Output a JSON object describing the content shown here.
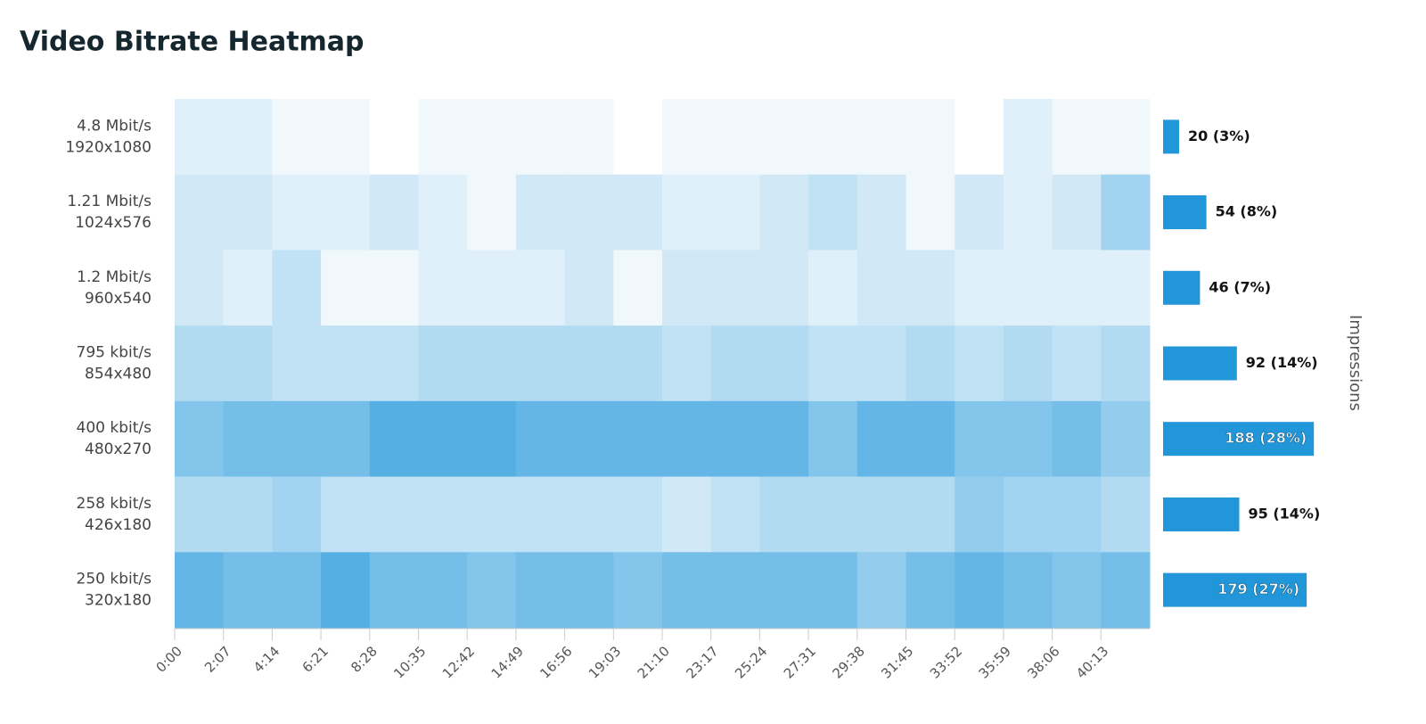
{
  "chart_data": {
    "type": "heatmap",
    "title": "Video Bitrate Heatmap",
    "x": [
      "0:00",
      "2:07",
      "4:14",
      "6:21",
      "8:28",
      "10:35",
      "12:42",
      "14:49",
      "16:56",
      "19:03",
      "21:10",
      "23:17",
      "25:24",
      "27:31",
      "29:38",
      "31:45",
      "33:52",
      "35:59",
      "38:06",
      "40:13"
    ],
    "y": [
      {
        "bitrate": "4.8 Mbit/s",
        "resolution": "1920x1080"
      },
      {
        "bitrate": "1.21 Mbit/s",
        "resolution": "1024x576"
      },
      {
        "bitrate": "1.2 Mbit/s",
        "resolution": "960x540"
      },
      {
        "bitrate": "795 kbit/s",
        "resolution": "854x480"
      },
      {
        "bitrate": "400 kbit/s",
        "resolution": "480x270"
      },
      {
        "bitrate": "258 kbit/s",
        "resolution": "426x180"
      },
      {
        "bitrate": "250 kbit/s",
        "resolution": "320x180"
      }
    ],
    "values": [
      [
        2,
        2,
        1,
        1,
        0,
        1,
        1,
        1,
        1,
        0,
        1,
        1,
        1,
        1,
        1,
        1,
        0,
        2,
        1,
        1
      ],
      [
        3,
        3,
        2,
        2,
        3,
        2,
        1,
        3,
        3,
        3,
        2,
        2,
        3,
        4,
        3,
        1,
        3,
        2,
        3,
        6
      ],
      [
        3,
        2,
        4,
        1,
        1,
        2,
        2,
        2,
        3,
        1,
        3,
        3,
        3,
        2,
        3,
        3,
        2,
        2,
        2,
        2
      ],
      [
        5,
        5,
        4,
        4,
        4,
        5,
        5,
        5,
        5,
        5,
        4,
        5,
        5,
        4,
        4,
        5,
        4,
        5,
        4,
        5
      ],
      [
        8,
        9,
        9,
        9,
        11,
        11,
        11,
        10,
        10,
        10,
        10,
        10,
        10,
        8,
        10,
        10,
        8,
        8,
        9,
        7
      ],
      [
        5,
        5,
        6,
        4,
        4,
        4,
        4,
        4,
        4,
        4,
        3,
        4,
        5,
        5,
        5,
        5,
        7,
        6,
        6,
        5
      ],
      [
        10,
        9,
        9,
        11,
        9,
        9,
        8,
        9,
        9,
        8,
        9,
        9,
        9,
        9,
        7,
        9,
        10,
        9,
        8,
        9
      ]
    ],
    "color": "#2a9bdc",
    "bars": {
      "axis_label": "Impressions",
      "color": "#2196d8",
      "values": [
        20,
        54,
        46,
        92,
        188,
        95,
        179
      ],
      "value_labels": [
        "20 (3%)",
        "54 (8%)",
        "46 (7%)",
        "92 (14%)",
        "188 (28%)",
        "95 (14%)",
        "179 (27%)"
      ]
    }
  }
}
